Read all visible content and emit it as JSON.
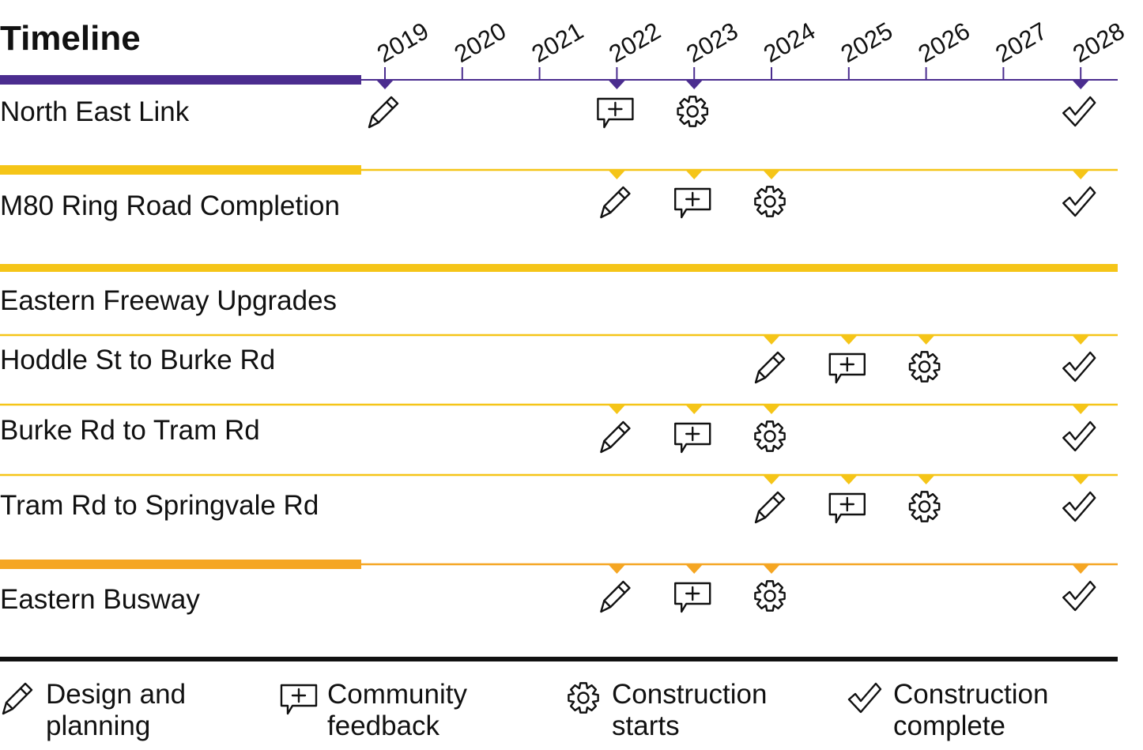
{
  "title": "Timeline",
  "years": [
    "2019",
    "2020",
    "2021",
    "2022",
    "2023",
    "2024",
    "2025",
    "2026",
    "2027",
    "2028"
  ],
  "colors": {
    "north_east_link": "#4b2d8f",
    "m80": "#f5c518",
    "eastern_freeway": "#f5c518",
    "eastern_busway": "#f5a623",
    "ink": "#111111"
  },
  "rows": [
    {
      "label": "North East Link",
      "color": "#4b2d8f",
      "milestones": [
        {
          "year": "2019",
          "stage": "design"
        },
        {
          "year": "2022",
          "stage": "feedback"
        },
        {
          "year": "2023",
          "stage": "construction-start"
        },
        {
          "year": "2028",
          "stage": "construction-complete"
        }
      ]
    },
    {
      "label": "M80 Ring Road Completion",
      "color": "#f5c518",
      "milestones": [
        {
          "year": "2022",
          "stage": "design"
        },
        {
          "year": "2023",
          "stage": "feedback"
        },
        {
          "year": "2024",
          "stage": "construction-start"
        },
        {
          "year": "2028",
          "stage": "construction-complete"
        }
      ]
    },
    {
      "label": "Eastern Freeway Upgrades",
      "color": "#f5c518",
      "is_group": true,
      "milestones": []
    },
    {
      "label": "Hoddle St to Burke Rd",
      "color": "#f5c518",
      "milestones": [
        {
          "year": "2024",
          "stage": "design"
        },
        {
          "year": "2025",
          "stage": "feedback"
        },
        {
          "year": "2026",
          "stage": "construction-start"
        },
        {
          "year": "2028",
          "stage": "construction-complete"
        }
      ]
    },
    {
      "label": "Burke Rd to Tram Rd",
      "color": "#f5c518",
      "milestones": [
        {
          "year": "2022",
          "stage": "design"
        },
        {
          "year": "2023",
          "stage": "feedback"
        },
        {
          "year": "2024",
          "stage": "construction-start"
        },
        {
          "year": "2028",
          "stage": "construction-complete"
        }
      ]
    },
    {
      "label": "Tram Rd to Springvale Rd",
      "color": "#f5c518",
      "milestones": [
        {
          "year": "2024",
          "stage": "design"
        },
        {
          "year": "2025",
          "stage": "feedback"
        },
        {
          "year": "2026",
          "stage": "construction-start"
        },
        {
          "year": "2028",
          "stage": "construction-complete"
        }
      ]
    },
    {
      "label": "Eastern Busway",
      "color": "#f5a623",
      "milestones": [
        {
          "year": "2022",
          "stage": "design"
        },
        {
          "year": "2023",
          "stage": "feedback"
        },
        {
          "year": "2024",
          "stage": "construction-start"
        },
        {
          "year": "2028",
          "stage": "construction-complete"
        }
      ]
    }
  ],
  "legend": [
    {
      "stage": "design",
      "icon": "pencil-icon",
      "lines": [
        "Design and",
        "planning"
      ]
    },
    {
      "stage": "feedback",
      "icon": "speech-bubble-plus-icon",
      "lines": [
        "Community",
        "feedback"
      ]
    },
    {
      "stage": "construction-start",
      "icon": "gear-icon",
      "lines": [
        "Construction",
        "starts"
      ]
    },
    {
      "stage": "construction-complete",
      "icon": "checkmark-icon",
      "lines": [
        "Construction",
        "complete"
      ]
    }
  ]
}
